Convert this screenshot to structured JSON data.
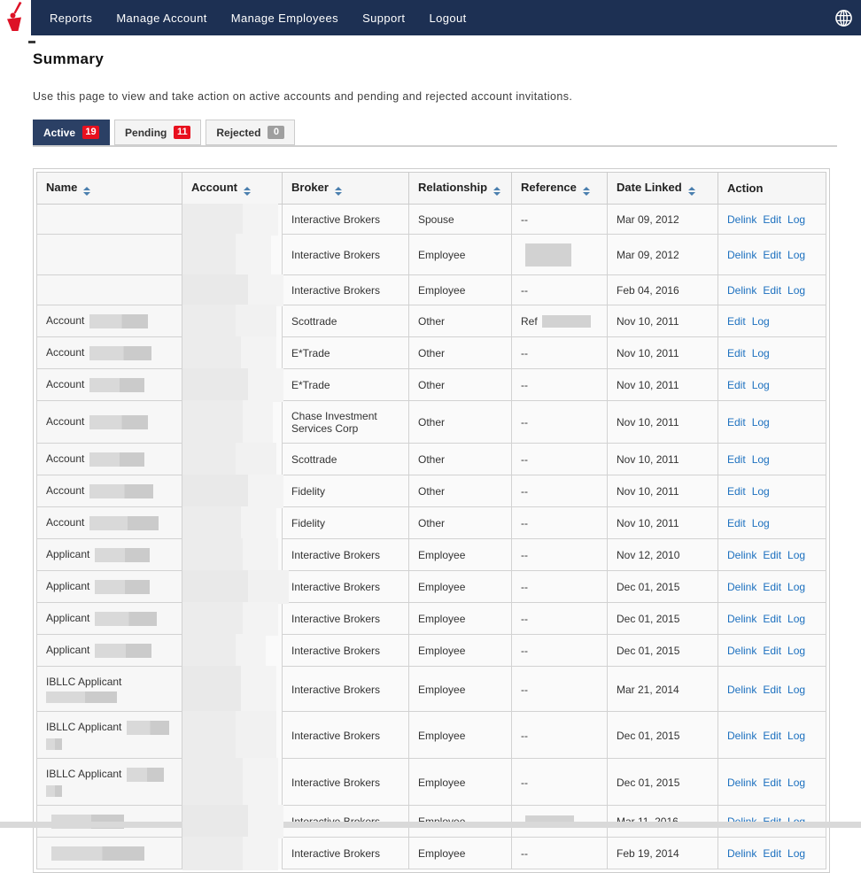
{
  "colors": {
    "navbar": "#1d3053",
    "active_tab": "#2b4065",
    "badge_red": "#e8101e",
    "badge_gray": "#9f9f9f",
    "link_blue": "#1c70bf",
    "logo_red": "#dd1226",
    "sort_icon_blue": "#4a7fae"
  },
  "nav": {
    "items": [
      {
        "label": "Reports"
      },
      {
        "label": "Manage Account"
      },
      {
        "label": "Manage Employees"
      },
      {
        "label": "Support"
      },
      {
        "label": "Logout"
      }
    ],
    "icons": [
      "brand-logo",
      "globe-icon"
    ]
  },
  "page": {
    "title": "Summary",
    "description": "Use this page to view and take action on active accounts and pending and rejected account invitations."
  },
  "tabs": [
    {
      "label": "Active",
      "count": "19",
      "active": true,
      "badge": "red"
    },
    {
      "label": "Pending",
      "count": "11",
      "active": false,
      "badge": "red"
    },
    {
      "label": "Rejected",
      "count": "0",
      "active": false,
      "badge": "gray"
    }
  ],
  "table": {
    "headers": [
      {
        "label": "Name",
        "sortable": true
      },
      {
        "label": "Account",
        "sortable": true
      },
      {
        "label": "Broker",
        "sortable": true
      },
      {
        "label": "Relationship",
        "sortable": true
      },
      {
        "label": "Reference",
        "sortable": true
      },
      {
        "label": "Date Linked",
        "sortable": true
      },
      {
        "label": "Action",
        "sortable": false
      }
    ],
    "rows": [
      {
        "name": null,
        "account_redacted": true,
        "broker": "Interactive Brokers",
        "relationship": "Spouse",
        "reference": {
          "text": "--",
          "redaction": null
        },
        "date_linked": "Mar 09, 2012",
        "actions": [
          "Delink",
          "Edit",
          "Log"
        ]
      },
      {
        "name": null,
        "account_redacted": true,
        "broker": "Interactive Brokers",
        "relationship": "Employee",
        "reference": {
          "text": "",
          "redaction": [
            52,
            26
          ]
        },
        "date_linked": "Mar 09, 2012",
        "actions": [
          "Delink",
          "Edit",
          "Log"
        ]
      },
      {
        "name": null,
        "account_redacted": true,
        "broker": "Interactive Brokers",
        "relationship": "Employee",
        "reference": {
          "text": "--",
          "redaction": null
        },
        "date_linked": "Feb 04, 2016",
        "actions": [
          "Delink",
          "Edit",
          "Log"
        ]
      },
      {
        "name": {
          "prefix": "Account",
          "inline_redaction": 66,
          "line2_redaction": 0
        },
        "account_redacted": true,
        "broker": "Scottrade",
        "relationship": "Other",
        "reference": {
          "text": "Ref",
          "redaction": [
            55,
            14
          ]
        },
        "date_linked": "Nov 10, 2011",
        "actions": [
          "Edit",
          "Log"
        ]
      },
      {
        "name": {
          "prefix": "Account",
          "inline_redaction": 70,
          "line2_redaction": 0
        },
        "account_redacted": true,
        "broker": "E*Trade",
        "relationship": "Other",
        "reference": {
          "text": "--",
          "redaction": null
        },
        "date_linked": "Nov 10, 2011",
        "actions": [
          "Edit",
          "Log"
        ]
      },
      {
        "name": {
          "prefix": "Account",
          "inline_redaction": 62,
          "line2_redaction": 0
        },
        "account_redacted": true,
        "broker": "E*Trade",
        "relationship": "Other",
        "reference": {
          "text": "--",
          "redaction": null
        },
        "date_linked": "Nov 10, 2011",
        "actions": [
          "Edit",
          "Log"
        ]
      },
      {
        "name": {
          "prefix": "Account",
          "inline_redaction": 66,
          "line2_redaction": 0
        },
        "account_redacted": true,
        "broker": "Chase Investment Services Corp",
        "relationship": "Other",
        "reference": {
          "text": "--",
          "redaction": null
        },
        "date_linked": "Nov 10, 2011",
        "actions": [
          "Edit",
          "Log"
        ]
      },
      {
        "name": {
          "prefix": "Account",
          "inline_redaction": 62,
          "line2_redaction": 0
        },
        "account_redacted": true,
        "broker": "Scottrade",
        "relationship": "Other",
        "reference": {
          "text": "--",
          "redaction": null
        },
        "date_linked": "Nov 10, 2011",
        "actions": [
          "Edit",
          "Log"
        ]
      },
      {
        "name": {
          "prefix": "Account",
          "inline_redaction": 72,
          "line2_redaction": 0
        },
        "account_redacted": true,
        "broker": "Fidelity",
        "relationship": "Other",
        "reference": {
          "text": "--",
          "redaction": null
        },
        "date_linked": "Nov 10, 2011",
        "actions": [
          "Edit",
          "Log"
        ]
      },
      {
        "name": {
          "prefix": "Account",
          "inline_redaction": 78,
          "line2_redaction": 0
        },
        "account_redacted": true,
        "broker": "Fidelity",
        "relationship": "Other",
        "reference": {
          "text": "--",
          "redaction": null
        },
        "date_linked": "Nov 10, 2011",
        "actions": [
          "Edit",
          "Log"
        ]
      },
      {
        "name": {
          "prefix": "Applicant",
          "inline_redaction": 62,
          "line2_redaction": 0
        },
        "account_redacted": true,
        "broker": "Interactive Brokers",
        "relationship": "Employee",
        "reference": {
          "text": "--",
          "redaction": null
        },
        "date_linked": "Nov 12, 2010",
        "actions": [
          "Delink",
          "Edit",
          "Log"
        ]
      },
      {
        "name": {
          "prefix": "Applicant",
          "inline_redaction": 62,
          "line2_redaction": 0
        },
        "account_redacted": true,
        "broker": "Interactive Brokers",
        "relationship": "Employee",
        "reference": {
          "text": "--",
          "redaction": null
        },
        "date_linked": "Dec 01, 2015",
        "actions": [
          "Delink",
          "Edit",
          "Log"
        ]
      },
      {
        "name": {
          "prefix": "Applicant",
          "inline_redaction": 70,
          "line2_redaction": 0
        },
        "account_redacted": true,
        "broker": "Interactive Brokers",
        "relationship": "Employee",
        "reference": {
          "text": "--",
          "redaction": null
        },
        "date_linked": "Dec 01, 2015",
        "actions": [
          "Delink",
          "Edit",
          "Log"
        ]
      },
      {
        "name": {
          "prefix": "Applicant",
          "inline_redaction": 64,
          "line2_redaction": 0
        },
        "account_redacted": true,
        "broker": "Interactive Brokers",
        "relationship": "Employee",
        "reference": {
          "text": "--",
          "redaction": null
        },
        "date_linked": "Dec 01, 2015",
        "actions": [
          "Delink",
          "Edit",
          "Log"
        ]
      },
      {
        "name": {
          "prefix": "IBLLC Applicant",
          "inline_redaction": 0,
          "line2_redaction": 80
        },
        "account_redacted": true,
        "broker": "Interactive Brokers",
        "relationship": "Employee",
        "reference": {
          "text": "--",
          "redaction": null
        },
        "date_linked": "Mar 21, 2014",
        "actions": [
          "Delink",
          "Edit",
          "Log"
        ]
      },
      {
        "name": {
          "prefix": "IBLLC Applicant",
          "inline_redaction": 48,
          "line2_redaction": 18
        },
        "account_redacted": true,
        "broker": "Interactive Brokers",
        "relationship": "Employee",
        "reference": {
          "text": "--",
          "redaction": null
        },
        "date_linked": "Dec 01, 2015",
        "actions": [
          "Delink",
          "Edit",
          "Log"
        ]
      },
      {
        "name": {
          "prefix": "IBLLC Applicant",
          "inline_redaction": 42,
          "line2_redaction": 18
        },
        "account_redacted": true,
        "broker": "Interactive Brokers",
        "relationship": "Employee",
        "reference": {
          "text": "--",
          "redaction": null
        },
        "date_linked": "Dec 01, 2015",
        "actions": [
          "Delink",
          "Edit",
          "Log"
        ]
      },
      {
        "name": {
          "prefix": "",
          "inline_redaction": 82,
          "line2_redaction": 0
        },
        "account_redacted": true,
        "broker": "Interactive Brokers",
        "relationship": "Employee",
        "reference": {
          "text": "",
          "redaction": [
            55,
            14
          ]
        },
        "date_linked": "Mar 11, 2016",
        "actions": [
          "Delink",
          "Edit",
          "Log"
        ]
      },
      {
        "name": {
          "prefix": "",
          "inline_redaction": 105,
          "line2_redaction": 0
        },
        "account_redacted": true,
        "broker": "Interactive Brokers",
        "relationship": "Employee",
        "reference": {
          "text": "--",
          "redaction": null
        },
        "date_linked": "Feb 19, 2014",
        "actions": [
          "Delink",
          "Edit",
          "Log"
        ]
      }
    ]
  }
}
